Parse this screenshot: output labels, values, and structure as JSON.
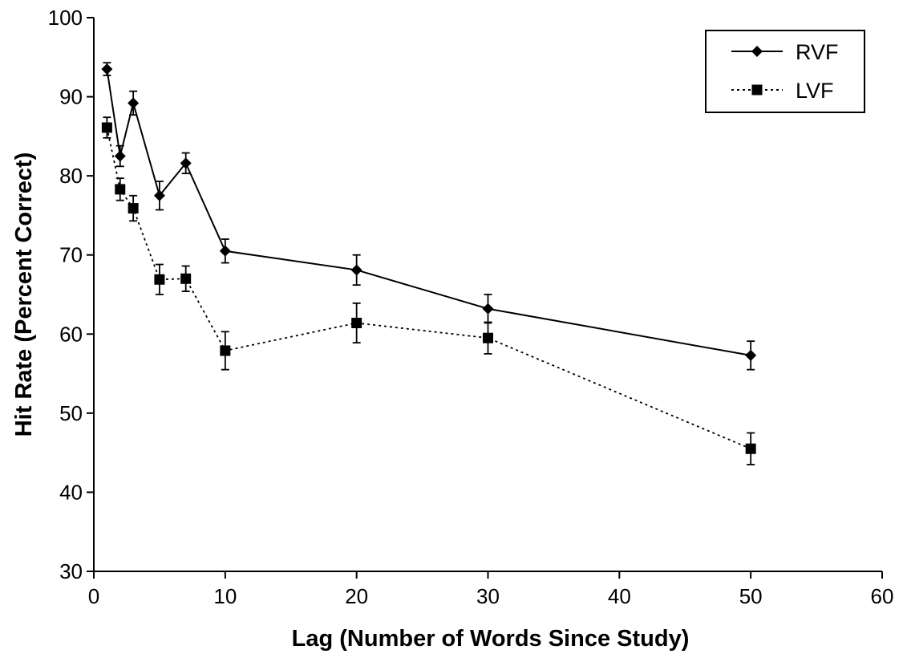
{
  "chart_data": {
    "type": "line",
    "title": "",
    "xlabel": "Lag (Number of Words Since Study)",
    "ylabel": "Hit Rate (Percent Correct)",
    "xlim": [
      0,
      60
    ],
    "ylim": [
      30,
      100
    ],
    "xticks": [
      0,
      10,
      20,
      30,
      40,
      50,
      60
    ],
    "yticks": [
      30,
      40,
      50,
      60,
      70,
      80,
      90,
      100
    ],
    "grid": false,
    "legend_position": "top-right",
    "x": [
      1,
      2,
      3,
      5,
      7,
      10,
      20,
      30,
      50
    ],
    "series": [
      {
        "name": "RVF",
        "marker": "diamond",
        "line_style": "solid",
        "values": [
          93.5,
          82.5,
          89.2,
          77.5,
          81.6,
          70.5,
          68.1,
          63.2,
          57.3
        ],
        "error": [
          0.8,
          1.3,
          1.5,
          1.8,
          1.3,
          1.5,
          1.9,
          1.8,
          1.8
        ]
      },
      {
        "name": "LVF",
        "marker": "square",
        "line_style": "dotted",
        "values": [
          86.1,
          78.3,
          75.9,
          66.9,
          67.0,
          57.9,
          61.4,
          59.5,
          45.5
        ],
        "error": [
          1.3,
          1.4,
          1.6,
          1.9,
          1.6,
          2.4,
          2.5,
          2.0,
          2.0
        ]
      }
    ]
  }
}
